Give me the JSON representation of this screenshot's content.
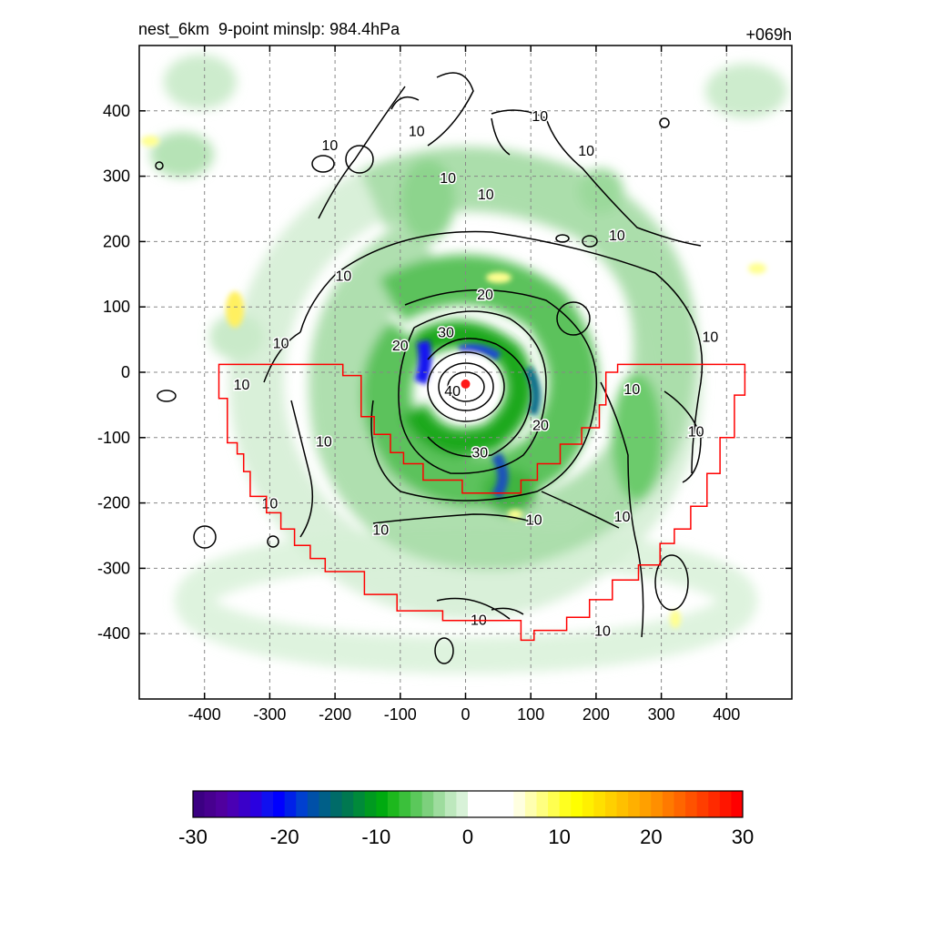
{
  "title_left": "nest_6km  9-point minslp: 984.4hPa",
  "title_right": "+069h",
  "chart_data": {
    "type": "heatmap",
    "xlim": [
      -500,
      500
    ],
    "ylim": [
      -500,
      500
    ],
    "x_ticks": [
      -400,
      -300,
      -200,
      -100,
      0,
      100,
      200,
      300,
      400
    ],
    "y_ticks": [
      400,
      300,
      200,
      100,
      0,
      -100,
      -200,
      -300,
      -400
    ],
    "grid": true,
    "storm_center": [
      0,
      -18
    ],
    "contour_labels": [
      {
        "text": "10",
        "x": 114,
        "y": 393
      },
      {
        "text": "10",
        "x": -208,
        "y": 348
      },
      {
        "text": "10",
        "x": -75,
        "y": 370
      },
      {
        "text": "10",
        "x": -27,
        "y": 298
      },
      {
        "text": "10",
        "x": 31,
        "y": 273
      },
      {
        "text": "10",
        "x": 185,
        "y": 340
      },
      {
        "text": "10",
        "x": 232,
        "y": 210
      },
      {
        "text": "10",
        "x": -187,
        "y": 148
      },
      {
        "text": "10",
        "x": -283,
        "y": 45
      },
      {
        "text": "10",
        "x": -343,
        "y": -18
      },
      {
        "text": "10",
        "x": 375,
        "y": 55
      },
      {
        "text": "10",
        "x": 255,
        "y": -25
      },
      {
        "text": "10",
        "x": 353,
        "y": -90
      },
      {
        "text": "10",
        "x": -217,
        "y": -105
      },
      {
        "text": "10",
        "x": -300,
        "y": -200
      },
      {
        "text": "10",
        "x": -130,
        "y": -240
      },
      {
        "text": "10",
        "x": 105,
        "y": -225
      },
      {
        "text": "10",
        "x": 240,
        "y": -220
      },
      {
        "text": "10",
        "x": 20,
        "y": -378
      },
      {
        "text": "10",
        "x": 210,
        "y": -395
      },
      {
        "text": "20",
        "x": 30,
        "y": 120
      },
      {
        "text": "20",
        "x": -100,
        "y": 42
      },
      {
        "text": "20",
        "x": 115,
        "y": -80
      },
      {
        "text": "30",
        "x": -30,
        "y": 62
      },
      {
        "text": "30",
        "x": 22,
        "y": -122
      },
      {
        "text": "40",
        "x": -20,
        "y": -28
      }
    ],
    "boundary_polygon": [
      [
        -378,
        12
      ],
      [
        -188,
        12
      ],
      [
        -188,
        -5
      ],
      [
        -160,
        -5
      ],
      [
        -160,
        -68
      ],
      [
        -140,
        -68
      ],
      [
        -140,
        -95
      ],
      [
        -115,
        -95
      ],
      [
        -115,
        -123
      ],
      [
        -95,
        -123
      ],
      [
        -95,
        -140
      ],
      [
        -65,
        -140
      ],
      [
        -65,
        -165
      ],
      [
        -5,
        -165
      ],
      [
        -5,
        -185
      ],
      [
        85,
        -185
      ],
      [
        85,
        -165
      ],
      [
        110,
        -165
      ],
      [
        110,
        -140
      ],
      [
        145,
        -140
      ],
      [
        145,
        -110
      ],
      [
        178,
        -110
      ],
      [
        178,
        -85
      ],
      [
        205,
        -85
      ],
      [
        205,
        -50
      ],
      [
        215,
        -50
      ],
      [
        215,
        0
      ],
      [
        233,
        0
      ],
      [
        233,
        12
      ],
      [
        428,
        12
      ],
      [
        428,
        -35
      ],
      [
        412,
        -35
      ],
      [
        412,
        -100
      ],
      [
        390,
        -100
      ],
      [
        390,
        -155
      ],
      [
        370,
        -155
      ],
      [
        370,
        -205
      ],
      [
        345,
        -205
      ],
      [
        345,
        -240
      ],
      [
        320,
        -240
      ],
      [
        320,
        -262
      ],
      [
        298,
        -262
      ],
      [
        298,
        -295
      ],
      [
        265,
        -295
      ],
      [
        265,
        -318
      ],
      [
        225,
        -318
      ],
      [
        225,
        -348
      ],
      [
        190,
        -348
      ],
      [
        190,
        -375
      ],
      [
        155,
        -375
      ],
      [
        155,
        -395
      ],
      [
        105,
        -395
      ],
      [
        105,
        -410
      ],
      [
        85,
        -410
      ],
      [
        85,
        -380
      ],
      [
        -35,
        -380
      ],
      [
        -35,
        -365
      ],
      [
        -105,
        -365
      ],
      [
        -105,
        -340
      ],
      [
        -155,
        -340
      ],
      [
        -155,
        -305
      ],
      [
        -215,
        -305
      ],
      [
        -215,
        -285
      ],
      [
        -238,
        -285
      ],
      [
        -238,
        -265
      ],
      [
        -262,
        -265
      ],
      [
        -262,
        -240
      ],
      [
        -283,
        -240
      ],
      [
        -283,
        -215
      ],
      [
        -305,
        -215
      ],
      [
        -305,
        -190
      ],
      [
        -330,
        -190
      ],
      [
        -330,
        -152
      ],
      [
        -340,
        -152
      ],
      [
        -340,
        -125
      ],
      [
        -350,
        -125
      ],
      [
        -350,
        -108
      ],
      [
        -365,
        -108
      ],
      [
        -365,
        -40
      ],
      [
        -378,
        -40
      ]
    ],
    "colorbar": {
      "tick_labels": [
        "-30",
        "-20",
        "-10",
        "0",
        "10",
        "20",
        "30"
      ],
      "tick_values": [
        -30,
        -20,
        -10,
        0,
        10,
        20,
        30
      ],
      "range": [
        -30,
        30
      ],
      "colors": [
        "#3b0082",
        "#47008f",
        "#50009e",
        "#4a00b4",
        "#3a00c9",
        "#2a00e0",
        "#1010f0",
        "#0000ff",
        "#0020e8",
        "#0040d0",
        "#0050a8",
        "#005f88",
        "#006b68",
        "#007850",
        "#008a3a",
        "#009a20",
        "#00aa10",
        "#1db81d",
        "#3bc03b",
        "#5bc85b",
        "#7dd07d",
        "#9edc9e",
        "#bde8bd",
        "#d8f2d8",
        "#ffffff",
        "#ffffff",
        "#ffffff",
        "#ffffff",
        "#ffffe0",
        "#ffffb0",
        "#ffff80",
        "#ffff50",
        "#ffff20",
        "#ffff00",
        "#fff000",
        "#ffe000",
        "#ffd000",
        "#ffc000",
        "#ffb000",
        "#ffa000",
        "#ff8f00",
        "#ff7a00",
        "#ff6600",
        "#ff5200",
        "#ff3e00",
        "#ff2a00",
        "#ff1500",
        "#ff0000"
      ]
    }
  }
}
